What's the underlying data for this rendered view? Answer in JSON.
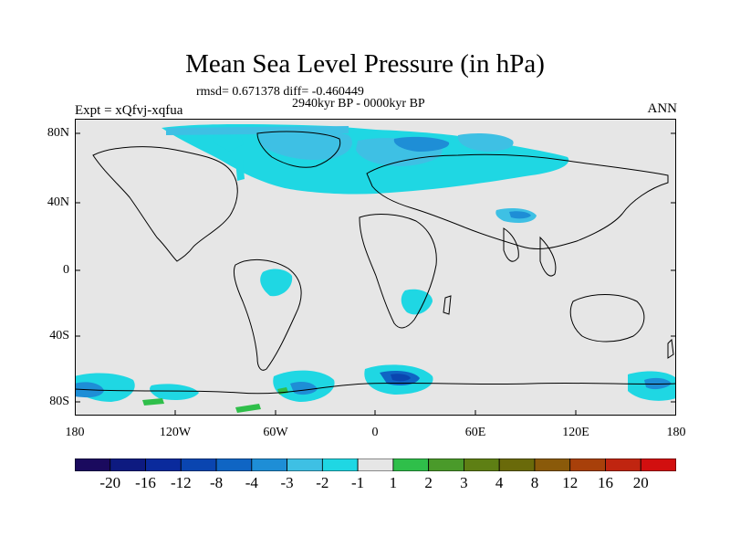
{
  "title": "Mean Sea Level Pressure (in hPa)",
  "stats_line1": "rmsd= 0.671378 diff= -0.460449",
  "stats_line2": "2940kyr BP - 0000kyr BP",
  "left_label": "Expt = xQfvj-xqfua",
  "right_label": "ANN",
  "lat_labels": [
    "80N",
    "40N",
    "0",
    "40S",
    "80S"
  ],
  "lon_labels": [
    "180",
    "120W",
    "60W",
    "0",
    "60E",
    "120E",
    "180"
  ],
  "colorbar": {
    "labels": [
      "-20",
      "-16",
      "-12",
      "-8",
      "-4",
      "-3",
      "-2",
      "-1",
      "1",
      "2",
      "3",
      "4",
      "8",
      "12",
      "16",
      "20"
    ],
    "colors": [
      "#1a0a5e",
      "#0d1a80",
      "#0a2a9c",
      "#0a45b0",
      "#0f65c4",
      "#1e8ed6",
      "#3ec0e4",
      "#1fd7e3",
      "#e6e6e6",
      "#2fbf4a",
      "#4a9a2a",
      "#5e7f14",
      "#6a6a0a",
      "#8a5a0a",
      "#a8400a",
      "#c02510",
      "#d20f0f"
    ]
  },
  "colors": {
    "background_map": "#e6e6e6",
    "coastline": "#000000"
  }
}
